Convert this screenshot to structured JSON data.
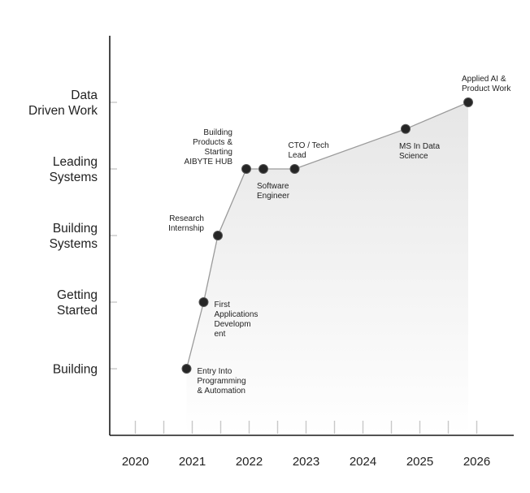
{
  "chart_data": {
    "type": "line",
    "title": "",
    "xlabel": "",
    "ylabel": "",
    "x_ticks": [
      "2020",
      "2021",
      "2022",
      "2023",
      "2024",
      "2025",
      "2026"
    ],
    "xlim": [
      2019.55,
      2026.65
    ],
    "y_levels": [
      [
        "Building"
      ],
      [
        "Getting",
        "Started"
      ],
      [
        "Building",
        "Systems"
      ],
      [
        "Leading",
        "Systems"
      ],
      [
        "Data",
        "Driven Work"
      ]
    ],
    "ylim": [
      -1.0,
      5.0
    ],
    "points": [
      {
        "x": 2020.9,
        "y": 0.0,
        "label": [
          "Entry Into",
          "Programming",
          "& Automation"
        ],
        "label_pos": "right-below"
      },
      {
        "x": 2021.2,
        "y": 1.0,
        "label": [
          "First",
          "Applications",
          "Developm",
          "ent"
        ],
        "label_pos": "right-below"
      },
      {
        "x": 2021.45,
        "y": 2.0,
        "label": [
          "Research",
          "Internship"
        ],
        "label_pos": "left-above"
      },
      {
        "x": 2021.95,
        "y": 3.0,
        "label": [
          "Building",
          "Products &",
          "Starting",
          "AIBYTE HUB"
        ],
        "label_pos": "left-above"
      },
      {
        "x": 2022.25,
        "y": 3.0,
        "label": [
          "Software",
          "Engineer"
        ],
        "label_pos": "below"
      },
      {
        "x": 2022.8,
        "y": 3.0,
        "label": [
          "CTO / Tech",
          "Lead"
        ],
        "label_pos": "above"
      },
      {
        "x": 2024.75,
        "y": 3.6,
        "label": [
          "MS In Data",
          "Science"
        ],
        "label_pos": "below"
      },
      {
        "x": 2025.85,
        "y": 4.0,
        "label": [
          "Applied AI &",
          "Product Work"
        ],
        "label_pos": "above"
      }
    ],
    "colors": {
      "axis": "#1a1a1a",
      "tick": "#c8c8c8",
      "line": "#9a9a9a",
      "marker": "#262626",
      "marker_stroke": "#555555",
      "text": "#222222",
      "fill": "#e9e9e9"
    }
  }
}
